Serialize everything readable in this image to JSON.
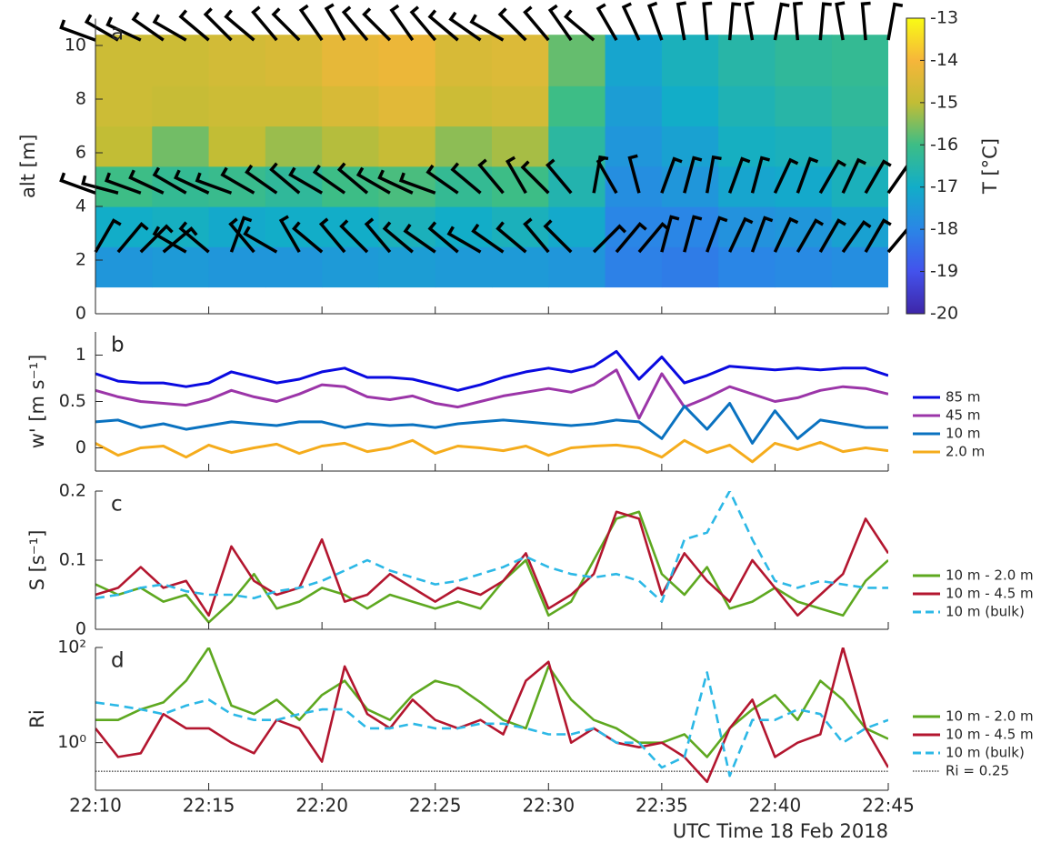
{
  "chart_data": [
    {
      "type": "heatmap",
      "panel_label": "a",
      "ylabel": "alt [m]",
      "xlim": [
        1330,
        1365
      ],
      "xticks": [
        1330,
        1335,
        1340,
        1345,
        1350,
        1355,
        1360,
        1365
      ],
      "ylim": [
        0,
        11
      ],
      "yticks": [
        0,
        2,
        4,
        6,
        8,
        10
      ],
      "x_edges": [
        1330,
        1332.5,
        1335,
        1337.5,
        1340,
        1342.5,
        1345,
        1347.5,
        1350,
        1352.5,
        1355,
        1357.5,
        1360,
        1362.5,
        1365
      ],
      "y_edges": [
        1,
        2.5,
        4,
        5.5,
        7,
        8.5,
        10.4
      ],
      "z": [
        [
          -17.6,
          -17.5,
          -17.6,
          -17.6,
          -17.5,
          -17.4,
          -17.5,
          -17.5,
          -17.6,
          -18.1,
          -18.2,
          -18.0,
          -17.9,
          -17.8
        ],
        [
          -17.0,
          -16.9,
          -17.1,
          -17.0,
          -17.0,
          -16.8,
          -17.0,
          -16.8,
          -17.1,
          -18.0,
          -18.0,
          -17.7,
          -17.6,
          -17.3
        ],
        [
          -16.0,
          -16.2,
          -16.1,
          -16.3,
          -16.0,
          -15.9,
          -16.2,
          -16.0,
          -16.6,
          -17.8,
          -17.6,
          -17.2,
          -17.1,
          -16.8
        ],
        [
          -15.0,
          -15.6,
          -15.0,
          -15.3,
          -15.1,
          -14.9,
          -15.4,
          -15.2,
          -16.4,
          -17.6,
          -17.3,
          -16.9,
          -16.8,
          -16.5
        ],
        [
          -14.8,
          -14.9,
          -14.8,
          -14.8,
          -14.6,
          -14.4,
          -14.8,
          -14.7,
          -16.0,
          -17.4,
          -17.0,
          -16.7,
          -16.5,
          -16.3
        ],
        [
          -14.8,
          -14.8,
          -14.7,
          -14.6,
          -14.3,
          -14.2,
          -14.6,
          -14.5,
          -15.7,
          -17.2,
          -16.8,
          -16.5,
          -16.3,
          -16.2
        ]
      ],
      "colormap": [
        "#3e26a8",
        "#4352ec",
        "#2a86e6",
        "#12adc8",
        "#3dbd86",
        "#c2bd35",
        "#f6b63a",
        "#f9fb15"
      ],
      "colorbar": {
        "label": "T [°C]",
        "lim": [
          -20,
          -13
        ],
        "ticks": [
          -13,
          -14,
          -15,
          -16,
          -17,
          -18,
          -19,
          -20
        ]
      },
      "x": [
        1330,
        1331,
        1332,
        1333,
        1334,
        1335,
        1336,
        1337,
        1338,
        1339,
        1340,
        1341,
        1342,
        1343,
        1344,
        1345,
        1346,
        1347,
        1348,
        1349,
        1350,
        1351,
        1352,
        1353,
        1354,
        1355,
        1356,
        1357,
        1358,
        1359,
        1360,
        1361,
        1362,
        1363,
        1364,
        1365
      ],
      "barbs": [
        {
          "alt": 10.2,
          "values": [
            290,
            300,
            295,
            305,
            300,
            310,
            315,
            310,
            320,
            315,
            325,
            330,
            320,
            315,
            325,
            320,
            310,
            305,
            300,
            315,
            320,
            325,
            310,
            330,
            335,
            340,
            350,
            355,
            5,
            350,
            10,
            355,
            5,
            350,
            355,
            10
          ]
        },
        {
          "alt": 4.5,
          "values": [
            290,
            285,
            290,
            295,
            300,
            295,
            290,
            300,
            305,
            310,
            300,
            305,
            310,
            300,
            295,
            290,
            305,
            310,
            320,
            330,
            315,
            320,
            10,
            330,
            345,
            20,
            15,
            10,
            20,
            15,
            25,
            20,
            30,
            25,
            30,
            35
          ]
        },
        {
          "alt": 2.3,
          "values": [
            30,
            40,
            45,
            50,
            300,
            310,
            20,
            320,
            300,
            330,
            310,
            320,
            315,
            320,
            310,
            305,
            310,
            300,
            305,
            310,
            320,
            315,
            45,
            40,
            40,
            15,
            15,
            20,
            25,
            20,
            25,
            30,
            30,
            35,
            30,
            40
          ]
        }
      ]
    },
    {
      "type": "line",
      "panel_label": "b",
      "ylabel": "w' [m s⁻¹]",
      "xlim": [
        1330,
        1365
      ],
      "xticks": [
        1330,
        1335,
        1340,
        1345,
        1350,
        1355,
        1360,
        1365
      ],
      "ylim": [
        -0.25,
        1.25
      ],
      "yticks": [
        0,
        0.5,
        1
      ],
      "x": [
        1330,
        1331,
        1332,
        1333,
        1334,
        1335,
        1336,
        1337,
        1338,
        1339,
        1340,
        1341,
        1342,
        1343,
        1344,
        1345,
        1346,
        1347,
        1348,
        1349,
        1350,
        1351,
        1352,
        1353,
        1354,
        1355,
        1356,
        1357,
        1358,
        1359,
        1360,
        1361,
        1362,
        1363,
        1364,
        1365
      ],
      "series": [
        {
          "name": "85 m",
          "color": "#0a0ae0",
          "values": [
            0.8,
            0.72,
            0.7,
            0.7,
            0.66,
            0.7,
            0.82,
            0.76,
            0.7,
            0.74,
            0.82,
            0.86,
            0.76,
            0.76,
            0.74,
            0.68,
            0.62,
            0.68,
            0.76,
            0.82,
            0.86,
            0.82,
            0.88,
            1.04,
            0.74,
            0.98,
            0.7,
            0.78,
            0.88,
            0.86,
            0.84,
            0.86,
            0.84,
            0.86,
            0.86,
            0.78
          ]
        },
        {
          "name": "45 m",
          "color": "#9b35a8",
          "values": [
            0.62,
            0.55,
            0.5,
            0.48,
            0.46,
            0.52,
            0.62,
            0.55,
            0.5,
            0.58,
            0.68,
            0.66,
            0.55,
            0.52,
            0.56,
            0.48,
            0.44,
            0.5,
            0.56,
            0.6,
            0.64,
            0.6,
            0.68,
            0.84,
            0.32,
            0.8,
            0.44,
            0.54,
            0.66,
            0.58,
            0.5,
            0.54,
            0.62,
            0.66,
            0.64,
            0.58
          ]
        },
        {
          "name": "10 m",
          "color": "#0a72c0",
          "values": [
            0.28,
            0.3,
            0.22,
            0.26,
            0.2,
            0.24,
            0.28,
            0.26,
            0.24,
            0.28,
            0.28,
            0.22,
            0.26,
            0.24,
            0.25,
            0.22,
            0.26,
            0.28,
            0.3,
            0.28,
            0.26,
            0.24,
            0.26,
            0.3,
            0.28,
            0.1,
            0.45,
            0.2,
            0.48,
            0.05,
            0.4,
            0.1,
            0.3,
            0.26,
            0.22,
            0.22
          ]
        },
        {
          "name": "2.0 m",
          "color": "#f5ac1c",
          "values": [
            0.05,
            -0.08,
            0.0,
            0.02,
            -0.1,
            0.03,
            -0.05,
            0.0,
            0.04,
            -0.06,
            0.02,
            0.05,
            -0.04,
            0.0,
            0.08,
            -0.06,
            0.02,
            0.0,
            -0.03,
            0.02,
            -0.08,
            0.0,
            0.02,
            0.03,
            0.0,
            -0.1,
            0.08,
            -0.05,
            0.03,
            -0.15,
            0.05,
            -0.02,
            0.06,
            -0.04,
            0.0,
            -0.03
          ]
        }
      ]
    },
    {
      "type": "line",
      "panel_label": "c",
      "ylabel": "S [s⁻¹]",
      "xlim": [
        1330,
        1365
      ],
      "xticks": [
        1330,
        1335,
        1340,
        1345,
        1350,
        1355,
        1360,
        1365
      ],
      "ylim": [
        0,
        0.2
      ],
      "yticks": [
        0,
        0.1,
        0.2
      ],
      "x": [
        1330,
        1331,
        1332,
        1333,
        1334,
        1335,
        1336,
        1337,
        1338,
        1339,
        1340,
        1341,
        1342,
        1343,
        1344,
        1345,
        1346,
        1347,
        1348,
        1349,
        1350,
        1351,
        1352,
        1353,
        1354,
        1355,
        1356,
        1357,
        1358,
        1359,
        1360,
        1361,
        1362,
        1363,
        1364,
        1365
      ],
      "series": [
        {
          "name": "10 m - 2.0 m",
          "color": "#5ea820",
          "values": [
            0.065,
            0.05,
            0.06,
            0.04,
            0.05,
            0.01,
            0.04,
            0.08,
            0.03,
            0.04,
            0.06,
            0.05,
            0.03,
            0.05,
            0.04,
            0.03,
            0.04,
            0.03,
            0.07,
            0.1,
            0.02,
            0.04,
            0.1,
            0.16,
            0.17,
            0.08,
            0.05,
            0.09,
            0.03,
            0.04,
            0.06,
            0.04,
            0.03,
            0.02,
            0.07,
            0.1
          ]
        },
        {
          "name": "10 m - 4.5 m",
          "color": "#b3162f",
          "values": [
            0.05,
            0.06,
            0.09,
            0.06,
            0.07,
            0.02,
            0.12,
            0.07,
            0.05,
            0.06,
            0.13,
            0.04,
            0.05,
            0.08,
            0.06,
            0.04,
            0.06,
            0.05,
            0.07,
            0.11,
            0.03,
            0.05,
            0.08,
            0.17,
            0.16,
            0.05,
            0.11,
            0.07,
            0.04,
            0.1,
            0.06,
            0.02,
            0.05,
            0.08,
            0.16,
            0.11
          ]
        },
        {
          "name": "10 m (bulk)",
          "color": "#2cb8e6",
          "dashed": true,
          "values": [
            0.045,
            0.05,
            0.06,
            0.065,
            0.055,
            0.05,
            0.05,
            0.045,
            0.055,
            0.06,
            0.07,
            0.085,
            0.1,
            0.085,
            0.075,
            0.065,
            0.07,
            0.08,
            0.09,
            0.105,
            0.09,
            0.08,
            0.075,
            0.08,
            0.07,
            0.04,
            0.13,
            0.14,
            0.2,
            0.13,
            0.07,
            0.06,
            0.07,
            0.065,
            0.06,
            0.06
          ]
        }
      ]
    },
    {
      "type": "line",
      "panel_label": "d",
      "ylabel": "Ri",
      "xlabel": "UTC Time 18 Feb 2018",
      "xlim": [
        1330,
        1365
      ],
      "xticks": [
        {
          "value": 1330,
          "label": "22:10"
        },
        {
          "value": 1335,
          "label": "22:15"
        },
        {
          "value": 1340,
          "label": "22:20"
        },
        {
          "value": 1345,
          "label": "22:25"
        },
        {
          "value": 1350,
          "label": "22:30"
        },
        {
          "value": 1355,
          "label": "22:35"
        },
        {
          "value": 1360,
          "label": "22:40"
        },
        {
          "value": 1365,
          "label": "22:45"
        }
      ],
      "ylim": [
        0.1,
        100
      ],
      "log": true,
      "yticks": [
        {
          "value": 1,
          "label": "10⁰"
        },
        {
          "value": 100,
          "label": "10²"
        }
      ],
      "x": [
        1330,
        1331,
        1332,
        1333,
        1334,
        1335,
        1336,
        1337,
        1338,
        1339,
        1340,
        1341,
        1342,
        1343,
        1344,
        1345,
        1346,
        1347,
        1348,
        1349,
        1350,
        1351,
        1352,
        1353,
        1354,
        1355,
        1356,
        1357,
        1358,
        1359,
        1360,
        1361,
        1362,
        1363,
        1364,
        1365
      ],
      "series": [
        {
          "name": "10 m - 2.0 m",
          "color": "#5ea820",
          "values": [
            3,
            3,
            5,
            7,
            20,
            100,
            6,
            4,
            8,
            3,
            10,
            20,
            5,
            3,
            10,
            20,
            15,
            7,
            3,
            2,
            40,
            8,
            3,
            2,
            1,
            1,
            1.5,
            0.5,
            2,
            5,
            10,
            3,
            20,
            8,
            2,
            1.2
          ]
        },
        {
          "name": "10 m - 4.5 m",
          "color": "#b3162f",
          "values": [
            2,
            0.5,
            0.6,
            4,
            2,
            2,
            1,
            0.6,
            3,
            2,
            0.4,
            40,
            4,
            2,
            8,
            3,
            2,
            3,
            1.5,
            20,
            50,
            1,
            2,
            1,
            0.8,
            1,
            0.5,
            0.15,
            2,
            8,
            0.5,
            1,
            1.5,
            100,
            2,
            0.3
          ]
        },
        {
          "name": "10 m (bulk)",
          "color": "#2cb8e6",
          "dashed": true,
          "values": [
            7,
            6,
            5,
            4,
            6,
            8,
            4,
            3,
            3,
            4,
            5,
            5,
            2,
            2,
            2.5,
            2,
            2,
            2.5,
            2.5,
            2,
            1.5,
            1.5,
            2,
            1,
            1,
            0.3,
            0.5,
            30,
            0.2,
            3,
            3,
            5,
            4,
            1,
            2,
            3
          ]
        }
      ],
      "reference_line": {
        "value": 0.25,
        "name": "Ri = 0.25",
        "color": "#000000"
      }
    }
  ]
}
